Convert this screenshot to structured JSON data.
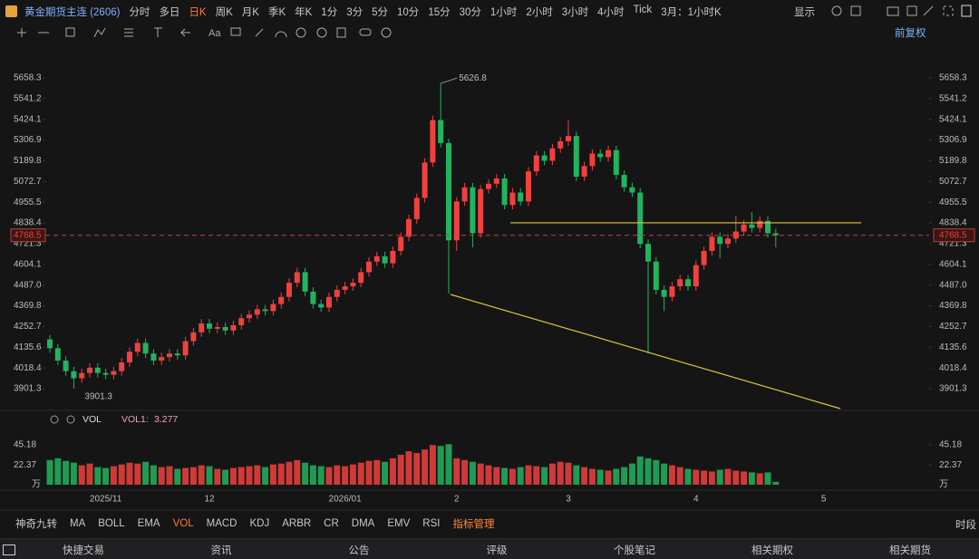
{
  "header": {
    "title": "黄金期货主连 (2606)",
    "periods": [
      {
        "label": "分时"
      },
      {
        "label": "多日"
      },
      {
        "label": "日K",
        "active": true
      },
      {
        "label": "周K"
      },
      {
        "label": "月K"
      },
      {
        "label": "季K"
      },
      {
        "label": "年K"
      },
      {
        "label": "1分"
      },
      {
        "label": "3分"
      },
      {
        "label": "5分"
      },
      {
        "label": "10分"
      },
      {
        "label": "15分"
      },
      {
        "label": "30分"
      },
      {
        "label": "1小时"
      },
      {
        "label": "2小时"
      },
      {
        "label": "3小时"
      },
      {
        "label": "4小时"
      },
      {
        "label": "Tick"
      },
      {
        "label": "3月：1小时K"
      }
    ],
    "display": "显示"
  },
  "tools": {
    "text_tool": "Aa",
    "adjust": "前复权"
  },
  "indicators": {
    "items": [
      {
        "label": "神奇九转"
      },
      {
        "label": "MA"
      },
      {
        "label": "BOLL"
      },
      {
        "label": "EMA"
      },
      {
        "label": "VOL",
        "active": true
      },
      {
        "label": "MACD"
      },
      {
        "label": "KDJ"
      },
      {
        "label": "ARBR"
      },
      {
        "label": "CR"
      },
      {
        "label": "DMA"
      },
      {
        "label": "EMV"
      },
      {
        "label": "RSI"
      },
      {
        "label": "指标管理",
        "highlight": true
      }
    ],
    "session": "时段"
  },
  "footer": {
    "items": [
      "快捷交易",
      "资讯",
      "公告",
      "评级",
      "个股笔记",
      "相关期权",
      "相关期货"
    ]
  },
  "chart_data": {
    "type": "candlestick",
    "categories": [
      null,
      null,
      null,
      null,
      null,
      null,
      null,
      "2025/11",
      null,
      null,
      null,
      null,
      null,
      null,
      null,
      null,
      null,
      null,
      null,
      null,
      "12",
      null,
      null,
      null,
      null,
      null,
      null,
      null,
      null,
      null,
      null,
      null,
      null,
      null,
      null,
      null,
      null,
      "2026/01",
      null,
      null,
      null,
      null,
      null,
      null,
      null,
      null,
      null,
      null,
      null,
      null,
      null,
      "2",
      null,
      null,
      null,
      null,
      null,
      null,
      null,
      null,
      null,
      null,
      null,
      null,
      null,
      "3",
      null,
      null,
      null,
      null,
      null,
      null,
      null,
      null,
      null,
      null,
      null,
      null,
      null,
      null,
      null,
      "4",
      null,
      null,
      null,
      null,
      null,
      null,
      null,
      null,
      null,
      null,
      null,
      null,
      null,
      null,
      null,
      "5"
    ],
    "open": [
      4180,
      4130,
      4060,
      4000,
      3960,
      3990,
      4020,
      3990,
      3980,
      4000,
      4050,
      4110,
      4160,
      4100,
      4060,
      4080,
      4100,
      4090,
      4170,
      4220,
      4270,
      4240,
      4250,
      4230,
      4260,
      4300,
      4320,
      4350,
      4340,
      4380,
      4420,
      4500,
      4560,
      4450,
      4380,
      4360,
      4420,
      4460,
      4480,
      4500,
      4560,
      4620,
      4650,
      4610,
      4680,
      4760,
      4860,
      4980,
      5180,
      5420,
      5290,
      4740,
      4960,
      5040,
      4780,
      5030,
      5060,
      5090,
      4940,
      5010,
      4960,
      5130,
      5220,
      5190,
      5260,
      5300,
      5330,
      5100,
      5160,
      5230,
      5210,
      5250,
      5110,
      5040,
      5010,
      4720,
      4620,
      4460,
      4420,
      4480,
      4520,
      4480,
      4600,
      4680,
      4760,
      4720,
      4750,
      4790,
      4830,
      4810,
      4850,
      4780,
      null,
      null,
      null,
      null,
      null,
      null
    ],
    "high": [
      4205,
      4155,
      4085,
      4025,
      4015,
      4045,
      4045,
      4015,
      4025,
      4075,
      4135,
      4185,
      4185,
      4125,
      4105,
      4125,
      4125,
      4195,
      4245,
      4295,
      4295,
      4275,
      4275,
      4285,
      4325,
      4345,
      4375,
      4375,
      4405,
      4445,
      4525,
      4585,
      4585,
      4475,
      4405,
      4445,
      4485,
      4505,
      4525,
      4585,
      4645,
      4675,
      4675,
      4705,
      4785,
      4885,
      5005,
      5205,
      5445,
      5626.8,
      5315,
      4985,
      5065,
      5065,
      5055,
      5085,
      5115,
      5115,
      5035,
      5035,
      5155,
      5245,
      5245,
      5285,
      5325,
      5420,
      5355,
      5185,
      5255,
      5255,
      5275,
      5275,
      5135,
      5065,
      5035,
      4745,
      4645,
      4485,
      4505,
      4545,
      4545,
      4625,
      4705,
      4785,
      4785,
      4775,
      4880,
      4855,
      4900,
      4875,
      4875,
      4805,
      null,
      null,
      null,
      null,
      null,
      null
    ],
    "low": [
      4105,
      4035,
      3975,
      3901.3,
      3935,
      3965,
      3965,
      3955,
      3955,
      3975,
      4025,
      4085,
      4075,
      4035,
      4035,
      4055,
      4065,
      4065,
      4145,
      4195,
      4215,
      4215,
      4205,
      4205,
      4235,
      4275,
      4295,
      4315,
      4315,
      4355,
      4395,
      4475,
      4425,
      4355,
      4335,
      4335,
      4395,
      4435,
      4455,
      4475,
      4535,
      4595,
      4585,
      4585,
      4655,
      4735,
      4835,
      4955,
      5155,
      5265,
      4440,
      4680,
      4935,
      4700,
      4755,
      5005,
      5035,
      4915,
      4915,
      4935,
      4935,
      5105,
      5165,
      5165,
      5235,
      5275,
      5075,
      5075,
      5135,
      5185,
      5185,
      5085,
      5015,
      4985,
      4695,
      4100,
      4435,
      4340,
      4395,
      4455,
      4455,
      4455,
      4575,
      4655,
      4640,
      4695,
      4725,
      4765,
      4785,
      4785,
      4755,
      4700,
      null,
      null,
      null,
      null,
      null,
      null
    ],
    "close": [
      4130,
      4060,
      4000,
      3960,
      3990,
      4020,
      3990,
      3980,
      4000,
      4050,
      4110,
      4160,
      4100,
      4060,
      4080,
      4100,
      4090,
      4170,
      4220,
      4270,
      4240,
      4250,
      4230,
      4260,
      4300,
      4320,
      4350,
      4340,
      4380,
      4420,
      4500,
      4560,
      4450,
      4380,
      4360,
      4420,
      4460,
      4480,
      4500,
      4560,
      4620,
      4650,
      4610,
      4680,
      4760,
      4860,
      4980,
      5180,
      5420,
      5290,
      4740,
      4960,
      5040,
      4780,
      5030,
      5060,
      5090,
      4940,
      5010,
      4960,
      5130,
      5220,
      5190,
      5260,
      5300,
      5330,
      5100,
      5160,
      5230,
      5210,
      5250,
      5110,
      5040,
      5010,
      4720,
      4620,
      4460,
      4420,
      4480,
      4520,
      4480,
      4600,
      4680,
      4760,
      4720,
      4750,
      4790,
      4830,
      4810,
      4850,
      4780,
      4768.5,
      null,
      null,
      null,
      null,
      null,
      null
    ],
    "volume": [
      28,
      30,
      27,
      25,
      22,
      24,
      20,
      19,
      21,
      23,
      25,
      24,
      26,
      22,
      20,
      21,
      18,
      19,
      20,
      22,
      21,
      18,
      17,
      19,
      20,
      21,
      22,
      20,
      23,
      24,
      26,
      28,
      25,
      22,
      21,
      20,
      22,
      21,
      23,
      25,
      27,
      28,
      26,
      30,
      34,
      38,
      36,
      40,
      45,
      44,
      46,
      30,
      28,
      26,
      24,
      22,
      20,
      19,
      18,
      20,
      22,
      21,
      20,
      24,
      26,
      25,
      22,
      20,
      18,
      17,
      16,
      18,
      20,
      24,
      32,
      30,
      28,
      24,
      22,
      20,
      18,
      17,
      16,
      15,
      17,
      18,
      16,
      15,
      14,
      13,
      14,
      3.277,
      null,
      null,
      null,
      null,
      null,
      null
    ],
    "up_color": "#f0413d",
    "down_color": "#22b35e",
    "ylim": [
      3793.8,
      5714.6
    ],
    "yticks": [
      3901.3,
      4018.4,
      4135.6,
      4252.7,
      4369.8,
      {
        "value": 4487,
        "label": "4487.0"
      },
      4604.1,
      4721.3,
      4838.4,
      4955.5,
      5072.7,
      5189.8,
      5306.9,
      5424.1,
      5541.2,
      5658.3
    ],
    "vol_ylim": [
      0,
      53.5
    ],
    "vol_yticks": [
      22.37,
      45.18
    ],
    "vol_unit": "万",
    "vol_indicator": "VOL",
    "vol_legend": "VOL1:",
    "trendlines": [
      {
        "y": [
          4839,
          4839
        ],
        "color": "#d9c640"
      },
      {
        "y": [
          4434.1,
          3788.7
        ],
        "color": "#d9c640"
      }
    ],
    "grid": false
  }
}
